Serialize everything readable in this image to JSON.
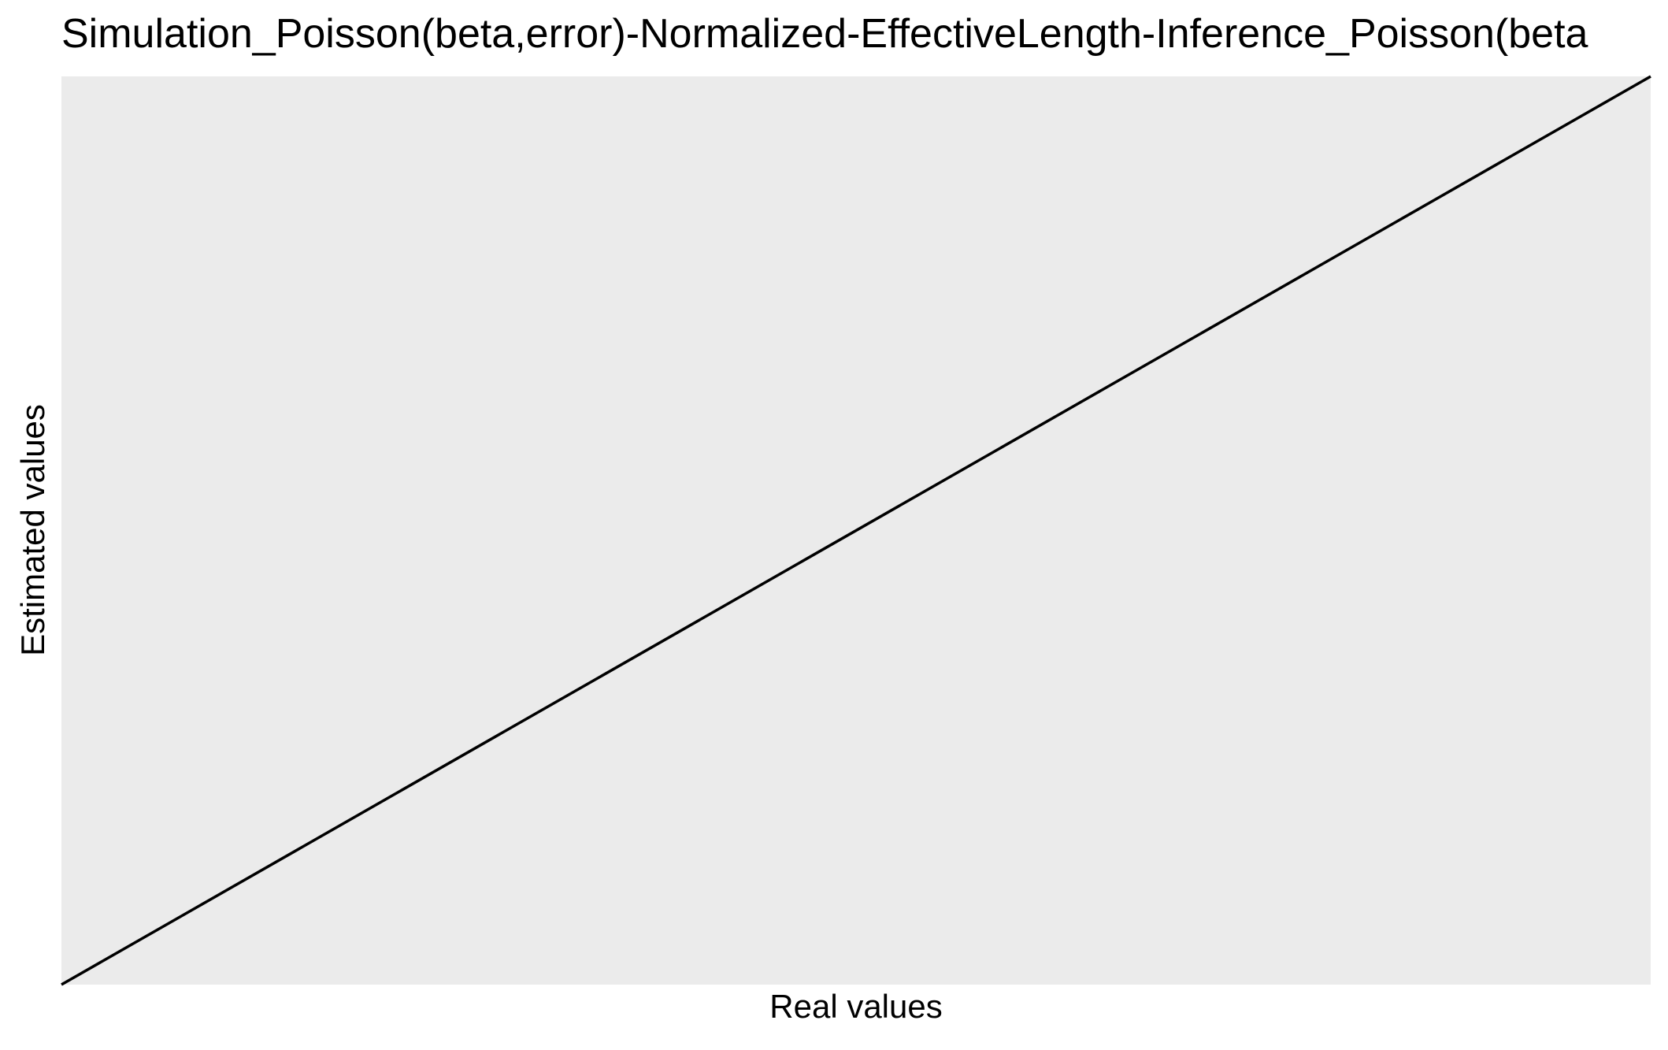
{
  "chart_data": {
    "type": "line",
    "title": "Simulation_Poisson(beta,error)-Normalized-EffectiveLength-Inference_Poisson(beta",
    "xlabel": "Real values",
    "ylabel": "Estimated values",
    "grid": false,
    "legend": "none",
    "colors": {
      "panel_background": "#EBEBEB",
      "line": "#000000"
    },
    "series": [
      {
        "role": "identity-line",
        "x": [
          0,
          1
        ],
        "y": [
          0,
          1
        ]
      }
    ],
    "xlim": [
      0,
      1
    ],
    "ylim": [
      0,
      1
    ]
  }
}
